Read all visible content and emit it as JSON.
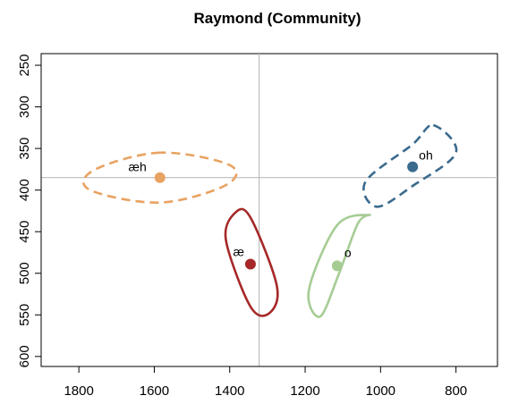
{
  "chart_data": {
    "type": "scatter",
    "title": "Raymond (Community)",
    "xlabel": "",
    "ylabel": "",
    "x_reversed": true,
    "y_reversed": true,
    "xlim": [
      1900,
      690
    ],
    "ylim": [
      612,
      236
    ],
    "xticks": [
      1800,
      1600,
      1400,
      1200,
      1000,
      800
    ],
    "yticks": [
      250,
      300,
      350,
      400,
      450,
      500,
      550,
      600
    ],
    "reference_lines": {
      "x": 1322,
      "y": 385
    },
    "grid": false,
    "points": [
      {
        "label": "æh",
        "x": 1585,
        "y": 385,
        "color": "#E8A362",
        "ellipse_style": "dashed",
        "ellipse": [
          [
            1585,
            355
          ],
          [
            1760,
            376
          ],
          [
            1770,
            400
          ],
          [
            1585,
            415
          ],
          [
            1410,
            394
          ],
          [
            1400,
            370
          ]
        ]
      },
      {
        "label": "æ",
        "x": 1345,
        "y": 489,
        "color": "#A62828",
        "ellipse_style": "solid",
        "ellipse": [
          [
            1385,
            427
          ],
          [
            1410,
            460
          ],
          [
            1345,
            540
          ],
          [
            1295,
            548
          ],
          [
            1275,
            515
          ],
          [
            1345,
            433
          ]
        ]
      },
      {
        "label": "o",
        "x": 1115,
        "y": 491,
        "color": "#A6CC94",
        "ellipse_style": "solid",
        "ellipse": [
          [
            1030,
            430
          ],
          [
            1060,
            440
          ],
          [
            1110,
            500
          ],
          [
            1160,
            552
          ],
          [
            1190,
            520
          ],
          [
            1115,
            442
          ]
        ]
      },
      {
        "label": "oh",
        "x": 915,
        "y": 372,
        "color": "#3A6A8E",
        "ellipse_style": "dashed",
        "ellipse": [
          [
            860,
            322
          ],
          [
            800,
            355
          ],
          [
            915,
            395
          ],
          [
            1010,
            420
          ],
          [
            1040,
            390
          ],
          [
            915,
            345
          ]
        ]
      }
    ]
  }
}
